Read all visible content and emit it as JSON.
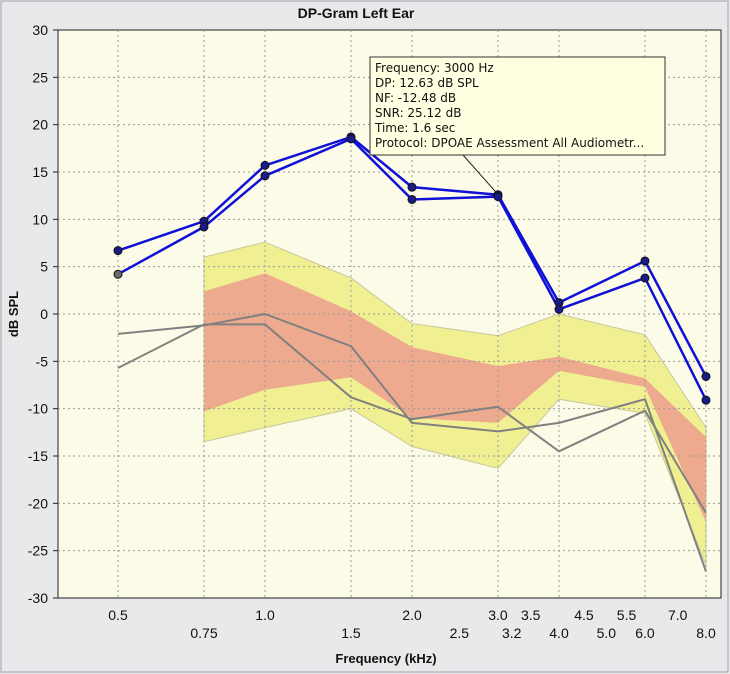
{
  "chart_data": {
    "type": "line",
    "title": "DP-Gram Left Ear",
    "xlabel": "Frequency (kHz)",
    "ylabel": "dB SPL",
    "ylim": [
      -30,
      30
    ],
    "y_ticks": [
      30,
      25,
      20,
      15,
      10,
      5,
      0,
      -5,
      -10,
      -15,
      -20,
      -25,
      -30
    ],
    "x_ticks_upper": [
      {
        "f": 0.5,
        "label": "0.5"
      },
      {
        "f": 1.0,
        "label": "1.0"
      },
      {
        "f": 2.0,
        "label": "2.0"
      },
      {
        "f": 3.0,
        "label": "3.0"
      },
      {
        "f": 3.5,
        "label": "3.5"
      },
      {
        "f": 4.5,
        "label": "4.5"
      },
      {
        "f": 5.5,
        "label": "5.5"
      },
      {
        "f": 7.0,
        "label": "7.0"
      }
    ],
    "x_ticks_lower": [
      {
        "f": 0.75,
        "label": "0.75"
      },
      {
        "f": 1.5,
        "label": "1.5"
      },
      {
        "f": 2.5,
        "label": "2.5"
      },
      {
        "f": 3.2,
        "label": "3.2"
      },
      {
        "f": 4.0,
        "label": "4.0"
      },
      {
        "f": 5.0,
        "label": "5.0"
      },
      {
        "f": 6.0,
        "label": "6.0"
      },
      {
        "f": 8.0,
        "label": "8.0"
      }
    ],
    "grid_frequencies": [
      0.5,
      0.75,
      1.0,
      1.5,
      2.0,
      3.0,
      4.0,
      6.0,
      8.0
    ],
    "norm_bands": {
      "frequencies": [
        0.75,
        1.0,
        1.5,
        2.0,
        3.0,
        4.0,
        6.0,
        8.0
      ],
      "yellow_upper": [
        6,
        7.6,
        3.8,
        -1,
        -2.3,
        0,
        -2.2,
        -12
      ],
      "yellow_lower": [
        -13.5,
        -12,
        -10,
        -14,
        -16.3,
        -9,
        -10.5,
        -26.5
      ],
      "red_upper": [
        2.4,
        4.3,
        0.3,
        -3.5,
        -5.5,
        -4.5,
        -6.8,
        -13
      ],
      "red_lower": [
        -10.3,
        -8,
        -6.7,
        -11,
        -11.5,
        -6,
        -7.7,
        -22
      ]
    },
    "series": [
      {
        "color": "#1010d8",
        "kind": "dp",
        "x": [
          0.5,
          0.75,
          1.0,
          1.5,
          2.0,
          3.0,
          4.0,
          6.0,
          8.0
        ],
        "y": [
          6.7,
          9.8,
          15.7,
          18.7,
          13.4,
          12.6,
          1.2,
          5.6,
          -6.6
        ]
      },
      {
        "color": "#1010d8",
        "kind": "dp",
        "x": [
          0.5,
          0.75,
          1.0,
          1.5,
          2.0,
          3.0,
          4.0,
          6.0,
          8.0
        ],
        "y": [
          4.2,
          9.2,
          14.6,
          18.5,
          12.1,
          12.4,
          0.5,
          3.8,
          -9.1
        ]
      },
      {
        "color": "#808080",
        "kind": "nf",
        "x": [
          0.5,
          0.75,
          1.0,
          1.5,
          2.0,
          3.0,
          4.0,
          6.0,
          8.0
        ],
        "y": [
          -2.1,
          -1.2,
          0,
          -3.4,
          -11.5,
          -12.4,
          -11.5,
          -9,
          -27.2
        ]
      },
      {
        "color": "#808080",
        "kind": "nf",
        "x": [
          0.5,
          0.75,
          1.0,
          1.5,
          2.0,
          3.0,
          4.0,
          6.0,
          8.0
        ],
        "y": [
          -5.7,
          -1.1,
          -1.1,
          -8.8,
          -11.1,
          -9.8,
          -14.5,
          -10.2,
          -21
        ]
      }
    ],
    "grey_dot": {
      "x": 0.5,
      "y": 4.2
    },
    "tooltip": {
      "anchor": {
        "x": 3.0,
        "y": 12.63
      },
      "lines": [
        "Frequency: 3000 Hz",
        "DP: 12.63 dB SPL",
        "NF: -12.48 dB",
        "SNR: 25.12 dB",
        "Time: 1.6 sec",
        "Protocol: DPOAE Assessment All Audiometr..."
      ]
    }
  }
}
